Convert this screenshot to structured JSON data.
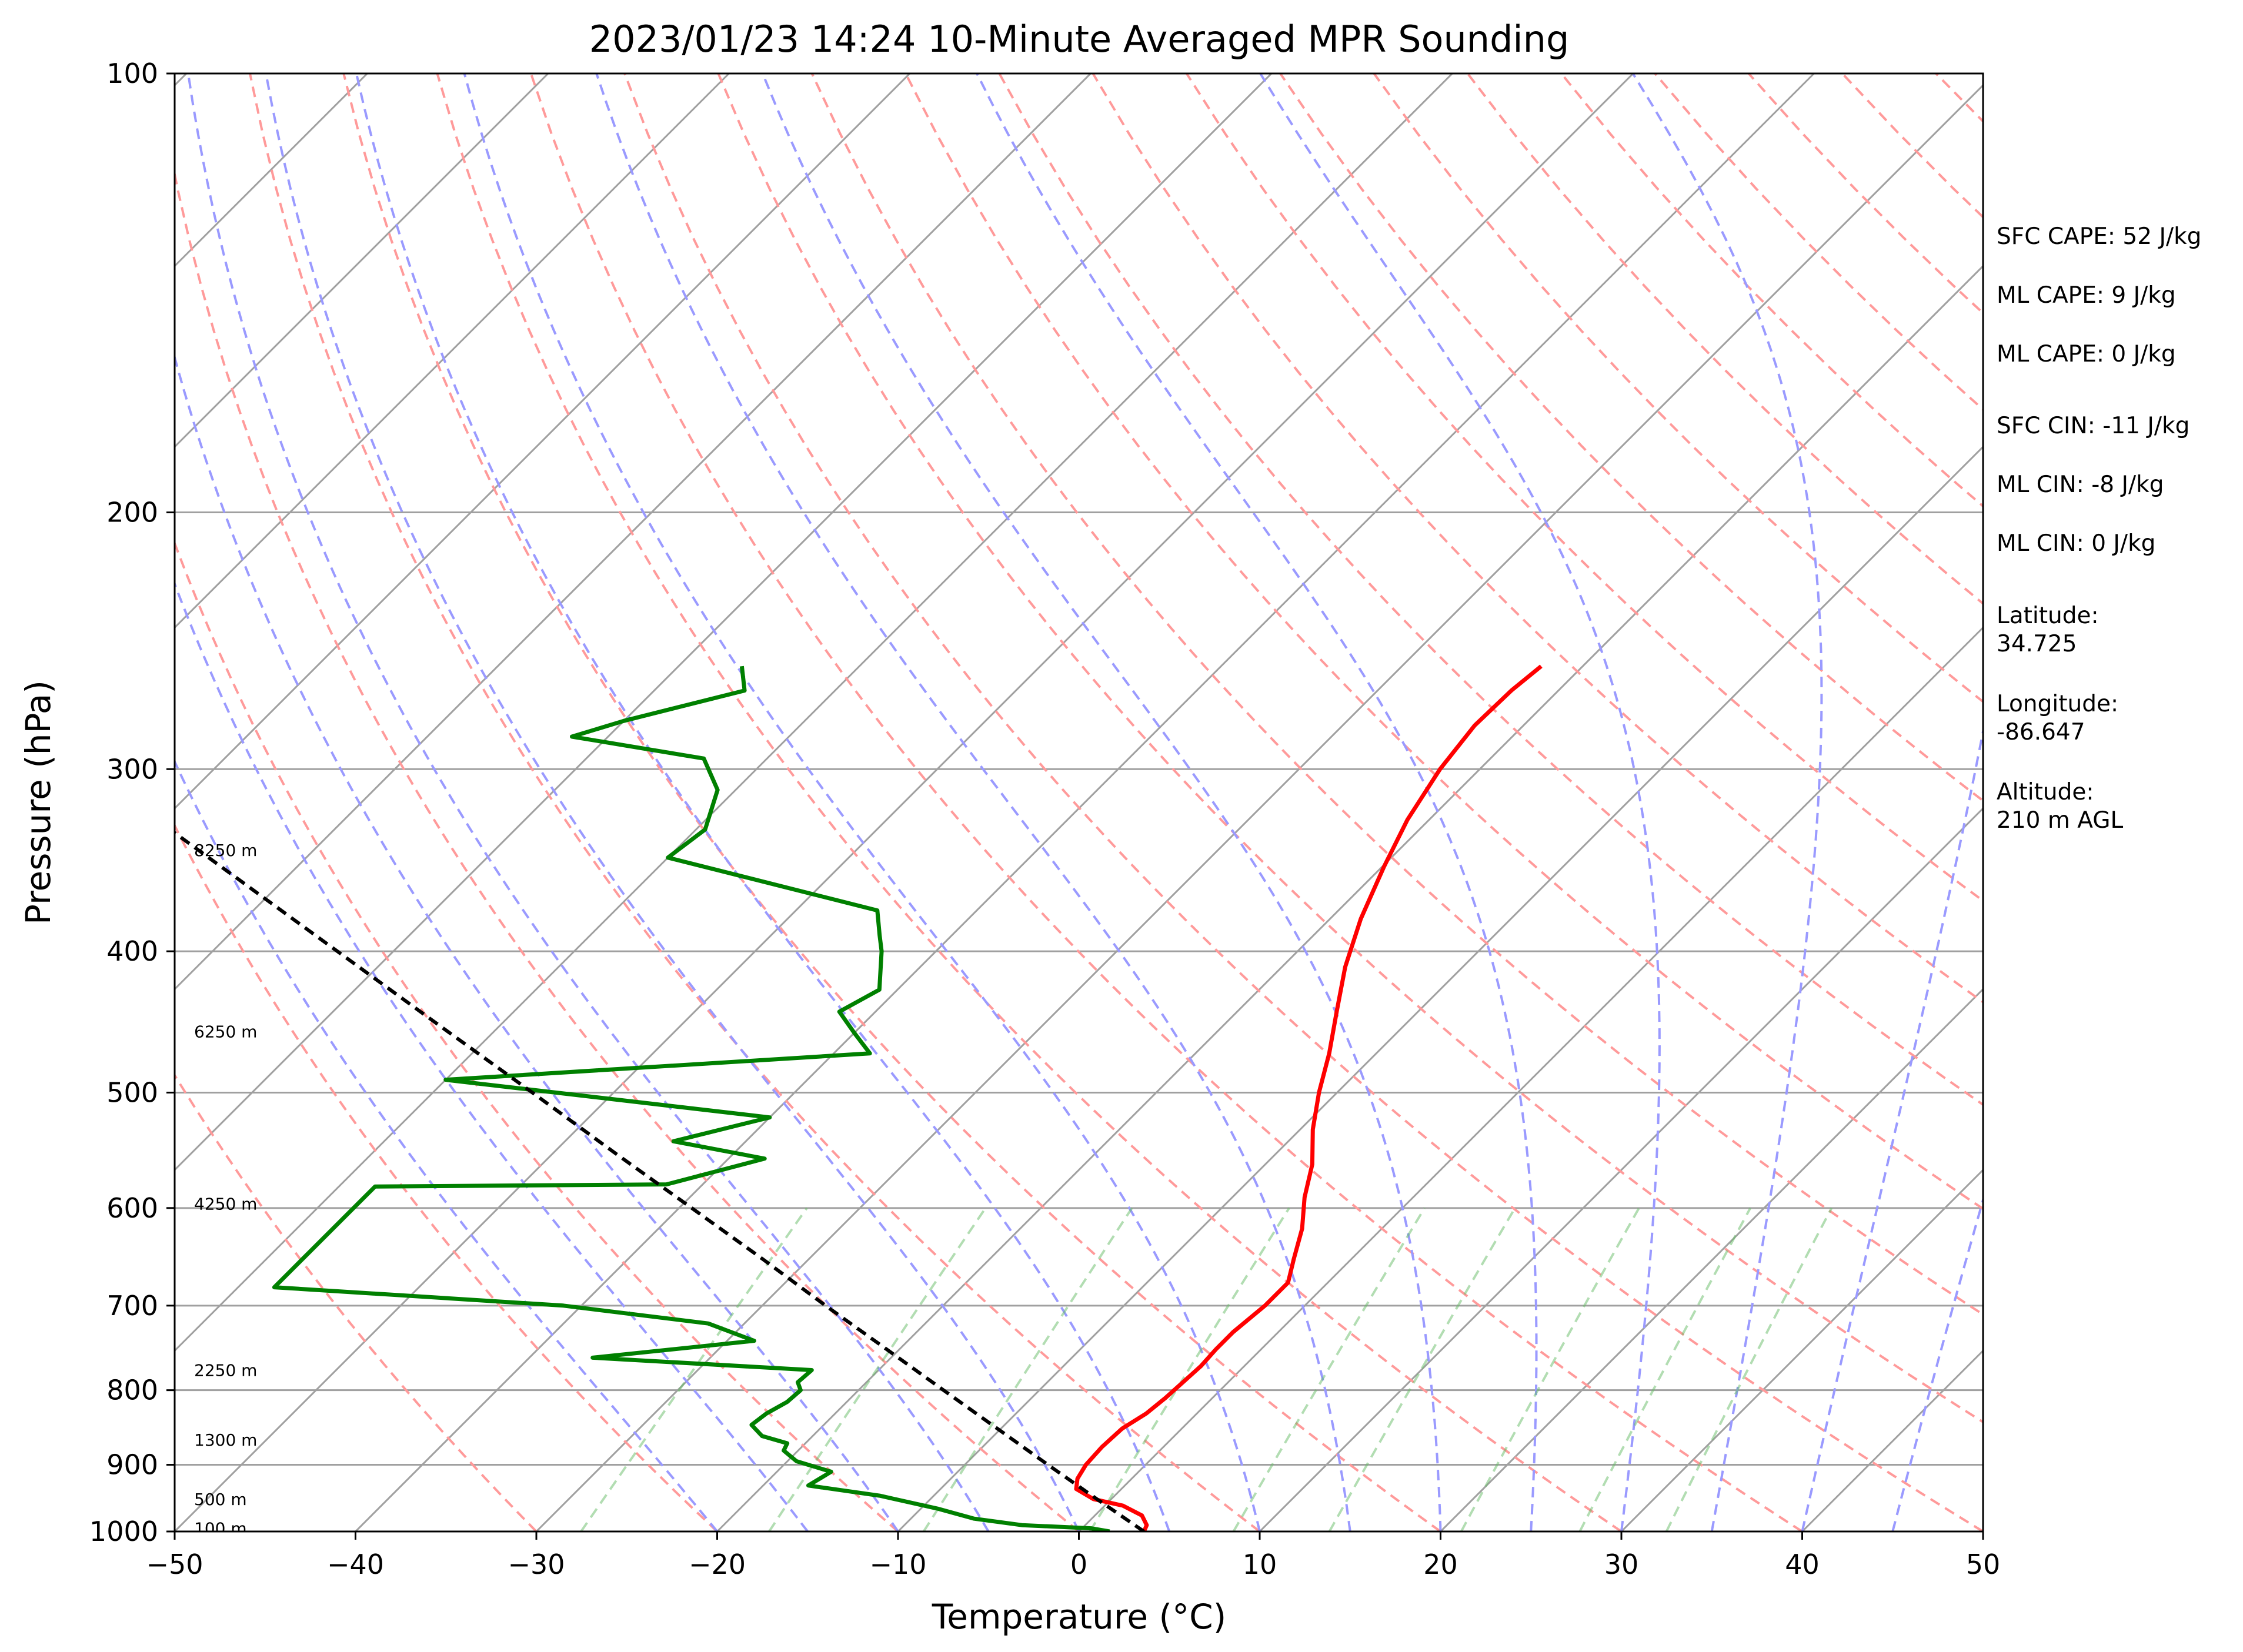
{
  "chart_data": {
    "type": "line",
    "subtype": "skew-t log-p sounding",
    "title": "2023/01/23 14:24 10-Minute Averaged MPR Sounding",
    "xlabel": "Temperature (°C)",
    "ylabel": "Pressure (hPa)",
    "xlim": [
      -50,
      50
    ],
    "ylim": [
      1000,
      100
    ],
    "y_scale": "log",
    "x_ticks": [
      -50,
      -40,
      -30,
      -20,
      -10,
      0,
      10,
      20,
      30,
      40,
      50
    ],
    "x_tick_labels": [
      "−50",
      "−40",
      "−30",
      "−20",
      "−10",
      "0",
      "10",
      "20",
      "30",
      "40",
      "50"
    ],
    "y_ticks": [
      1000,
      900,
      800,
      700,
      600,
      500,
      400,
      300,
      200,
      100
    ],
    "y_tick_labels": [
      "1000",
      "900",
      "800",
      "700",
      "600",
      "500",
      "400",
      "300",
      "200",
      "100"
    ],
    "grid": true,
    "series": [
      {
        "role": "temperature",
        "color": "#ff0000",
        "points": [
          [
            1000,
            3.6
          ],
          [
            990,
            3.4
          ],
          [
            975,
            2.6
          ],
          [
            960,
            1.0
          ],
          [
            950,
            -1.0
          ],
          [
            935,
            -2.5
          ],
          [
            920,
            -3.0
          ],
          [
            900,
            -3.3
          ],
          [
            875,
            -3.4
          ],
          [
            850,
            -3.3
          ],
          [
            830,
            -2.8
          ],
          [
            810,
            -2.6
          ],
          [
            790,
            -2.5
          ],
          [
            770,
            -2.4
          ],
          [
            750,
            -2.5
          ],
          [
            730,
            -2.5
          ],
          [
            700,
            -2.2
          ],
          [
            675,
            -2.2
          ],
          [
            650,
            -3.2
          ],
          [
            620,
            -4.4
          ],
          [
            590,
            -6.0
          ],
          [
            560,
            -7.4
          ],
          [
            530,
            -9.3
          ],
          [
            500,
            -11.0
          ],
          [
            470,
            -12.6
          ],
          [
            440,
            -14.5
          ],
          [
            410,
            -16.5
          ],
          [
            380,
            -18.3
          ],
          [
            350,
            -19.9
          ],
          [
            325,
            -21.2
          ],
          [
            300,
            -22.2
          ],
          [
            280,
            -22.7
          ],
          [
            265,
            -22.6
          ],
          [
            255,
            -22.3
          ]
        ]
      },
      {
        "role": "dewpoint",
        "color": "#008000",
        "points": [
          [
            1000,
            1.7
          ],
          [
            995,
            0.5
          ],
          [
            990,
            -3.5
          ],
          [
            980,
            -6.5
          ],
          [
            965,
            -9.0
          ],
          [
            945,
            -13.0
          ],
          [
            930,
            -17.5
          ],
          [
            910,
            -17.0
          ],
          [
            895,
            -19.5
          ],
          [
            880,
            -20.8
          ],
          [
            870,
            -21.0
          ],
          [
            860,
            -22.8
          ],
          [
            845,
            -24.0
          ],
          [
            830,
            -23.8
          ],
          [
            815,
            -23.3
          ],
          [
            800,
            -23.2
          ],
          [
            790,
            -23.8
          ],
          [
            775,
            -23.7
          ],
          [
            760,
            -36.5
          ],
          [
            740,
            -28.5
          ],
          [
            720,
            -32.0
          ],
          [
            700,
            -41.0
          ],
          [
            680,
            -58.0
          ],
          [
            580,
            -58.0
          ],
          [
            578,
            -42.0
          ],
          [
            555,
            -38.0
          ],
          [
            540,
            -44.0
          ],
          [
            520,
            -40.0
          ],
          [
            490,
            -60.0
          ],
          [
            470,
            -38.0
          ],
          [
            455,
            -40.0
          ],
          [
            440,
            -42.0
          ],
          [
            425,
            -41.0
          ],
          [
            400,
            -43.0
          ],
          [
            390,
            -44.0
          ],
          [
            375,
            -45.5
          ],
          [
            345,
            -60.0
          ],
          [
            330,
            -59.5
          ],
          [
            310,
            -61.0
          ],
          [
            295,
            -63.5
          ],
          [
            285,
            -72.0
          ],
          [
            278,
            -70.0
          ],
          [
            265,
            -65.0
          ],
          [
            255,
            -66.5
          ]
        ]
      },
      {
        "role": "parcel",
        "color": "#000000",
        "style": "dashed",
        "points": [
          [
            1000,
            3.6
          ],
          [
            950,
            -0.8
          ],
          [
            900,
            -5.4
          ],
          [
            850,
            -10.2
          ],
          [
            800,
            -15.3
          ],
          [
            750,
            -20.7
          ],
          [
            700,
            -26.5
          ],
          [
            650,
            -32.6
          ],
          [
            600,
            -39.3
          ],
          [
            550,
            -46.6
          ],
          [
            500,
            -54.5
          ],
          [
            450,
            -63.3
          ],
          [
            400,
            -73.1
          ],
          [
            350,
            -84.2
          ],
          [
            300,
            -97.0
          ],
          [
            260,
            -108.7
          ]
        ]
      }
    ],
    "height_labels": [
      {
        "text": "100 m",
        "pressure": 995
      },
      {
        "text": "500 m",
        "pressure": 950
      },
      {
        "text": "1300 m",
        "pressure": 865
      },
      {
        "text": "2250 m",
        "pressure": 775
      },
      {
        "text": "4250 m",
        "pressure": 596
      },
      {
        "text": "6250 m",
        "pressure": 454
      },
      {
        "text": "8250 m",
        "pressure": 341
      }
    ],
    "annotations": [
      "SFC CAPE: 52 J/kg",
      "ML CAPE: 9 J/kg",
      "ML CAPE: 0 J/kg",
      "SFC CIN: -11 J/kg",
      "ML CIN: -8 J/kg",
      "ML CIN: 0 J/kg",
      "Latitude:",
      "34.725",
      "Longitude:",
      "-86.647",
      "Altitude:",
      "210 m AGL"
    ],
    "reference_lines": {
      "isotherms_color": "#a0a0a0",
      "dry_adiabats_color": "#ff9a9a",
      "moist_adiabats_color": "#9a9aff",
      "mixing_ratio_color": "#66bb66"
    }
  }
}
